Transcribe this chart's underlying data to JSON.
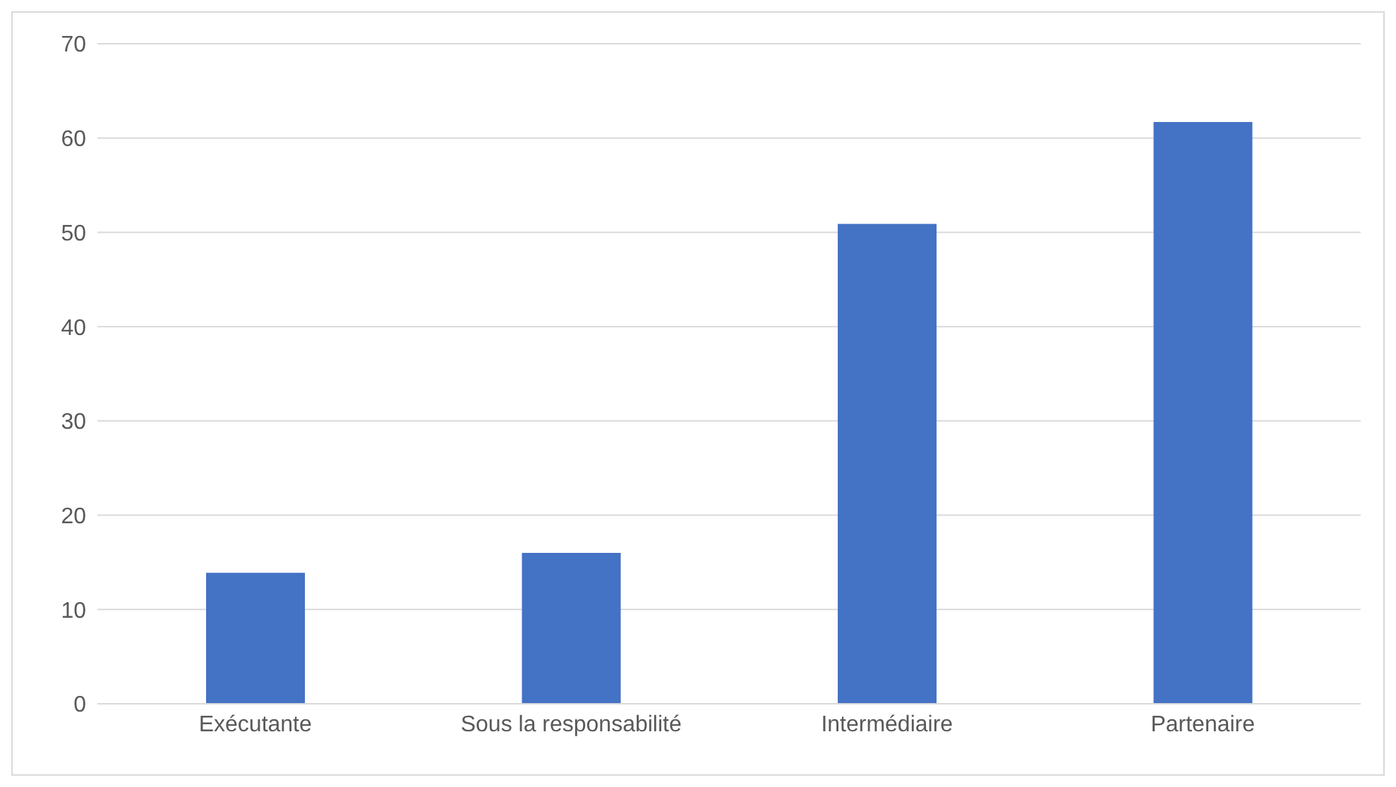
{
  "chart_data": {
    "type": "bar",
    "categories": [
      "Exécutante",
      "Sous la responsabilité",
      "Intermédiaire",
      "Partenaire"
    ],
    "values": [
      13.9,
      16,
      50.9,
      61.7
    ],
    "color": "#4472c4",
    "ylim": [
      0,
      70
    ],
    "yticks": [
      0,
      10,
      20,
      30,
      40,
      50,
      60,
      70
    ],
    "grid": "y",
    "legend": false
  }
}
